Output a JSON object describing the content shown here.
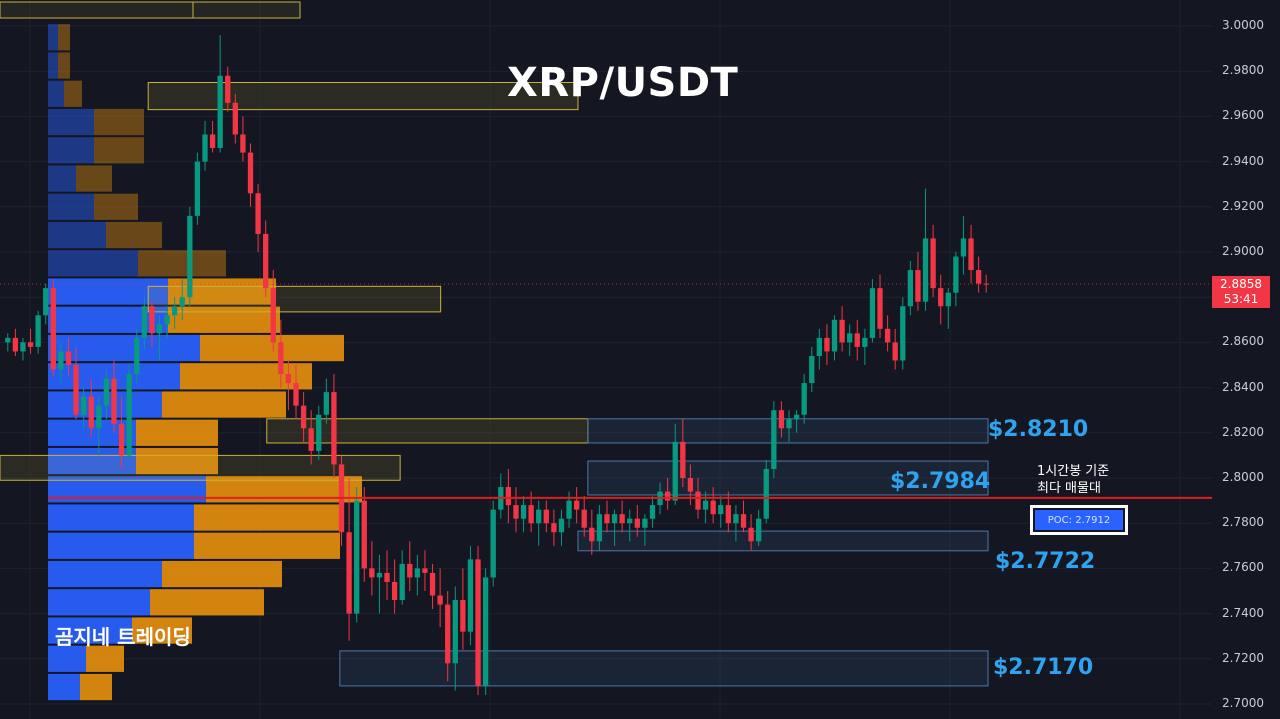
{
  "title": "XRP/USDT",
  "watermark": "곰지네 트레이딩",
  "price_axis": {
    "ticks": [
      "3.0000",
      "2.9800",
      "2.9600",
      "2.9400",
      "2.9200",
      "2.9000",
      "2.8800",
      "2.8600",
      "2.8400",
      "2.8200",
      "2.8000",
      "2.7800",
      "2.7600",
      "2.7400",
      "2.7200",
      "2.7000"
    ],
    "tick_values": [
      3.0,
      2.98,
      2.96,
      2.94,
      2.92,
      2.9,
      2.88,
      2.86,
      2.84,
      2.82,
      2.8,
      2.78,
      2.76,
      2.74,
      2.72,
      2.7
    ]
  },
  "last_price": {
    "value": "2.8858",
    "countdown": "53:41"
  },
  "poc": {
    "label": "POC: 2.7912",
    "value": 2.7912,
    "note_line1": "1시간봉 기준",
    "note_line2": "최다 매물대"
  },
  "levels": [
    {
      "label": "$2.8210",
      "value": 2.821
    },
    {
      "label": "$2.7984",
      "value": 2.7984
    },
    {
      "label": "$2.7722",
      "value": 2.7722
    },
    {
      "label": "$2.7170",
      "value": 2.717
    }
  ],
  "colors": {
    "background": "#141722",
    "up": "#089981",
    "down": "#f23645",
    "poc_line": "#e01e1e",
    "level_label": "#2ea4f0",
    "profile_buy": "#2962ff",
    "profile_sell": "#e8900c",
    "zone_yellow": "#c9b338",
    "zone_blue": "#4a78a8"
  },
  "chart_data": {
    "type": "candlestick",
    "symbol": "XRP/USDT",
    "timeframe": "1h",
    "ylim": [
      2.7,
      3.0
    ],
    "grid": true,
    "candles": [
      [
        2.86,
        2.864,
        2.856,
        2.862
      ],
      [
        2.862,
        2.866,
        2.854,
        2.856
      ],
      [
        2.856,
        2.862,
        2.852,
        2.86
      ],
      [
        2.86,
        2.866,
        2.855,
        2.858
      ],
      [
        2.858,
        2.874,
        2.855,
        2.872
      ],
      [
        2.872,
        2.886,
        2.868,
        2.884
      ],
      [
        2.884,
        2.888,
        2.845,
        2.848
      ],
      [
        2.848,
        2.86,
        2.842,
        2.856
      ],
      [
        2.856,
        2.862,
        2.845,
        2.85
      ],
      [
        2.85,
        2.858,
        2.826,
        2.828
      ],
      [
        2.828,
        2.84,
        2.822,
        2.836
      ],
      [
        2.836,
        2.844,
        2.818,
        2.822
      ],
      [
        2.822,
        2.836,
        2.81,
        2.832
      ],
      [
        2.832,
        2.848,
        2.826,
        2.844
      ],
      [
        2.844,
        2.852,
        2.82,
        2.824
      ],
      [
        2.824,
        2.836,
        2.804,
        2.81
      ],
      [
        2.81,
        2.85,
        2.808,
        2.846
      ],
      [
        2.846,
        2.866,
        2.842,
        2.862
      ],
      [
        2.862,
        2.88,
        2.857,
        2.876
      ],
      [
        2.876,
        2.878,
        2.858,
        2.864
      ],
      [
        2.864,
        2.872,
        2.852,
        2.868
      ],
      [
        2.868,
        2.876,
        2.862,
        2.872
      ],
      [
        2.872,
        2.88,
        2.866,
        2.876
      ],
      [
        2.876,
        2.888,
        2.87,
        2.88
      ],
      [
        2.88,
        2.92,
        2.876,
        2.916
      ],
      [
        2.916,
        2.944,
        2.912,
        2.94
      ],
      [
        2.94,
        2.958,
        2.936,
        2.952
      ],
      [
        2.952,
        2.958,
        2.944,
        2.946
      ],
      [
        2.946,
        2.996,
        2.944,
        2.978
      ],
      [
        2.978,
        2.982,
        2.962,
        2.966
      ],
      [
        2.966,
        2.97,
        2.948,
        2.952
      ],
      [
        2.952,
        2.96,
        2.94,
        2.944
      ],
      [
        2.944,
        2.948,
        2.92,
        2.926
      ],
      [
        2.926,
        2.93,
        2.9,
        2.908
      ],
      [
        2.908,
        2.914,
        2.88,
        2.884
      ],
      [
        2.884,
        2.892,
        2.856,
        2.86
      ],
      [
        2.86,
        2.87,
        2.84,
        2.846
      ],
      [
        2.846,
        2.852,
        2.83,
        2.842
      ],
      [
        2.842,
        2.85,
        2.826,
        2.832
      ],
      [
        2.832,
        2.838,
        2.816,
        2.822
      ],
      [
        2.822,
        2.83,
        2.806,
        2.812
      ],
      [
        2.812,
        2.832,
        2.808,
        2.828
      ],
      [
        2.828,
        2.844,
        2.824,
        2.838
      ],
      [
        2.838,
        2.846,
        2.8,
        2.806
      ],
      [
        2.806,
        2.81,
        2.77,
        2.776
      ],
      [
        2.776,
        2.8,
        2.728,
        2.74
      ],
      [
        2.74,
        2.796,
        2.736,
        2.79
      ],
      [
        2.79,
        2.796,
        2.754,
        2.76
      ],
      [
        2.76,
        2.772,
        2.748,
        2.756
      ],
      [
        2.756,
        2.766,
        2.74,
        2.758
      ],
      [
        2.758,
        2.768,
        2.746,
        2.754
      ],
      [
        2.754,
        2.764,
        2.74,
        2.746
      ],
      [
        2.746,
        2.768,
        2.744,
        2.762
      ],
      [
        2.762,
        2.772,
        2.75,
        2.756
      ],
      [
        2.756,
        2.766,
        2.748,
        2.76
      ],
      [
        2.76,
        2.768,
        2.75,
        2.758
      ],
      [
        2.758,
        2.762,
        2.742,
        2.748
      ],
      [
        2.748,
        2.76,
        2.734,
        2.744
      ],
      [
        2.744,
        2.75,
        2.71,
        2.718
      ],
      [
        2.718,
        2.752,
        2.706,
        2.746
      ],
      [
        2.746,
        2.76,
        2.724,
        2.732
      ],
      [
        2.732,
        2.77,
        2.726,
        2.764
      ],
      [
        2.764,
        2.77,
        2.704,
        2.708
      ],
      [
        2.708,
        2.76,
        2.704,
        2.756
      ],
      [
        2.756,
        2.79,
        2.752,
        2.786
      ],
      [
        2.786,
        2.802,
        2.782,
        2.796
      ],
      [
        2.796,
        2.804,
        2.78,
        2.788
      ],
      [
        2.788,
        2.796,
        2.776,
        2.782
      ],
      [
        2.782,
        2.792,
        2.776,
        2.788
      ],
      [
        2.788,
        2.794,
        2.776,
        2.78
      ],
      [
        2.78,
        2.79,
        2.77,
        2.786
      ],
      [
        2.786,
        2.79,
        2.776,
        2.78
      ],
      [
        2.78,
        2.786,
        2.77,
        2.776
      ],
      [
        2.776,
        2.786,
        2.77,
        2.782
      ],
      [
        2.782,
        2.794,
        2.778,
        2.79
      ],
      [
        2.79,
        2.796,
        2.78,
        2.786
      ],
      [
        2.786,
        2.792,
        2.774,
        2.778
      ],
      [
        2.778,
        2.786,
        2.766,
        2.772
      ],
      [
        2.772,
        2.788,
        2.768,
        2.784
      ],
      [
        2.784,
        2.79,
        2.776,
        2.78
      ],
      [
        2.78,
        2.786,
        2.77,
        2.784
      ],
      [
        2.784,
        2.79,
        2.776,
        2.78
      ],
      [
        2.78,
        2.786,
        2.772,
        2.782
      ],
      [
        2.782,
        2.788,
        2.774,
        2.778
      ],
      [
        2.778,
        2.784,
        2.77,
        2.782
      ],
      [
        2.782,
        2.792,
        2.778,
        2.788
      ],
      [
        2.788,
        2.798,
        2.784,
        2.794
      ],
      [
        2.794,
        2.8,
        2.786,
        2.79
      ],
      [
        2.79,
        2.824,
        2.788,
        2.816
      ],
      [
        2.816,
        2.826,
        2.796,
        2.8
      ],
      [
        2.8,
        2.806,
        2.788,
        2.794
      ],
      [
        2.794,
        2.8,
        2.782,
        2.786
      ],
      [
        2.786,
        2.794,
        2.78,
        2.79
      ],
      [
        2.79,
        2.796,
        2.78,
        2.784
      ],
      [
        2.784,
        2.792,
        2.778,
        2.788
      ],
      [
        2.788,
        2.794,
        2.776,
        2.78
      ],
      [
        2.78,
        2.788,
        2.772,
        2.784
      ],
      [
        2.784,
        2.79,
        2.776,
        2.778
      ],
      [
        2.778,
        2.784,
        2.768,
        2.772
      ],
      [
        2.772,
        2.786,
        2.77,
        2.782
      ],
      [
        2.782,
        2.808,
        2.78,
        2.804
      ],
      [
        2.804,
        2.834,
        2.8,
        2.83
      ],
      [
        2.83,
        2.834,
        2.818,
        2.822
      ],
      [
        2.822,
        2.83,
        2.816,
        2.826
      ],
      [
        2.826,
        2.83,
        2.82,
        2.828
      ],
      [
        2.828,
        2.846,
        2.824,
        2.842
      ],
      [
        2.842,
        2.858,
        2.838,
        2.854
      ],
      [
        2.854,
        2.866,
        2.848,
        2.862
      ],
      [
        2.862,
        2.868,
        2.85,
        2.856
      ],
      [
        2.856,
        2.872,
        2.852,
        2.87
      ],
      [
        2.87,
        2.876,
        2.856,
        2.86
      ],
      [
        2.86,
        2.868,
        2.854,
        2.864
      ],
      [
        2.864,
        2.87,
        2.852,
        2.858
      ],
      [
        2.858,
        2.866,
        2.85,
        2.862
      ],
      [
        2.862,
        2.888,
        2.86,
        2.884
      ],
      [
        2.884,
        2.89,
        2.862,
        2.866
      ],
      [
        2.866,
        2.872,
        2.856,
        2.86
      ],
      [
        2.86,
        2.866,
        2.848,
        2.852
      ],
      [
        2.852,
        2.88,
        2.848,
        2.876
      ],
      [
        2.876,
        2.896,
        2.872,
        2.892
      ],
      [
        2.892,
        2.9,
        2.874,
        2.878
      ],
      [
        2.878,
        2.928,
        2.874,
        2.906
      ],
      [
        2.906,
        2.912,
        2.88,
        2.884
      ],
      [
        2.884,
        2.89,
        2.868,
        2.876
      ],
      [
        2.876,
        2.884,
        2.866,
        2.882
      ],
      [
        2.882,
        2.9,
        2.876,
        2.898
      ],
      [
        2.898,
        2.916,
        2.89,
        2.906
      ],
      [
        2.906,
        2.912,
        2.886,
        2.892
      ],
      [
        2.892,
        2.898,
        2.882,
        2.886
      ],
      [
        2.886,
        2.89,
        2.882,
        2.8858
      ]
    ]
  },
  "volume_profile": {
    "rows": [
      {
        "price": 2.995,
        "buy": 10,
        "sell": 12
      },
      {
        "price": 2.9825,
        "buy": 10,
        "sell": 12
      },
      {
        "price": 2.97,
        "buy": 16,
        "sell": 18
      },
      {
        "price": 2.9575,
        "buy": 46,
        "sell": 50
      },
      {
        "price": 2.945,
        "buy": 46,
        "sell": 50
      },
      {
        "price": 2.9325,
        "buy": 28,
        "sell": 36
      },
      {
        "price": 2.92,
        "buy": 46,
        "sell": 44
      },
      {
        "price": 2.9075,
        "buy": 58,
        "sell": 56
      },
      {
        "price": 2.895,
        "buy": 90,
        "sell": 88
      },
      {
        "price": 2.8825,
        "buy": 120,
        "sell": 108
      },
      {
        "price": 2.87,
        "buy": 120,
        "sell": 112
      },
      {
        "price": 2.8575,
        "buy": 152,
        "sell": 144
      },
      {
        "price": 2.845,
        "buy": 132,
        "sell": 132
      },
      {
        "price": 2.8325,
        "buy": 114,
        "sell": 124
      },
      {
        "price": 2.82,
        "buy": 88,
        "sell": 82
      },
      {
        "price": 2.8075,
        "buy": 88,
        "sell": 82
      },
      {
        "price": 2.795,
        "buy": 158,
        "sell": 156
      },
      {
        "price": 2.7825,
        "buy": 146,
        "sell": 146
      },
      {
        "price": 2.77,
        "buy": 146,
        "sell": 146
      },
      {
        "price": 2.7575,
        "buy": 114,
        "sell": 120
      },
      {
        "price": 2.745,
        "buy": 102,
        "sell": 114
      },
      {
        "price": 2.7325,
        "buy": 84,
        "sell": 60
      },
      {
        "price": 2.72,
        "buy": 38,
        "sell": 38
      },
      {
        "price": 2.7075,
        "buy": 32,
        "sell": 32
      }
    ]
  },
  "zones": [
    {
      "kind": "yellow",
      "top": 2.975,
      "bottom": 2.963,
      "from": 0.15,
      "to": 0.585
    },
    {
      "kind": "yellow",
      "top": 2.8848,
      "bottom": 2.8735,
      "from": 0.15,
      "to": 0.446
    },
    {
      "kind": "yellow",
      "top": 2.8262,
      "bottom": 2.8155,
      "from": 0.27,
      "to": 0.595
    },
    {
      "kind": "yellow",
      "top": 2.81,
      "bottom": 2.799,
      "from": 0.0,
      "to": 0.405
    },
    {
      "kind": "blue",
      "top": 2.8262,
      "bottom": 2.8155,
      "from": 0.595,
      "to": 1.0
    },
    {
      "kind": "blue",
      "top": 2.8075,
      "bottom": 2.7925,
      "from": 0.595,
      "to": 1.0
    },
    {
      "kind": "blue",
      "top": 2.7765,
      "bottom": 2.7678,
      "from": 0.585,
      "to": 1.0
    },
    {
      "kind": "blue",
      "top": 2.7235,
      "bottom": 2.708,
      "from": 0.344,
      "to": 1.0
    }
  ]
}
